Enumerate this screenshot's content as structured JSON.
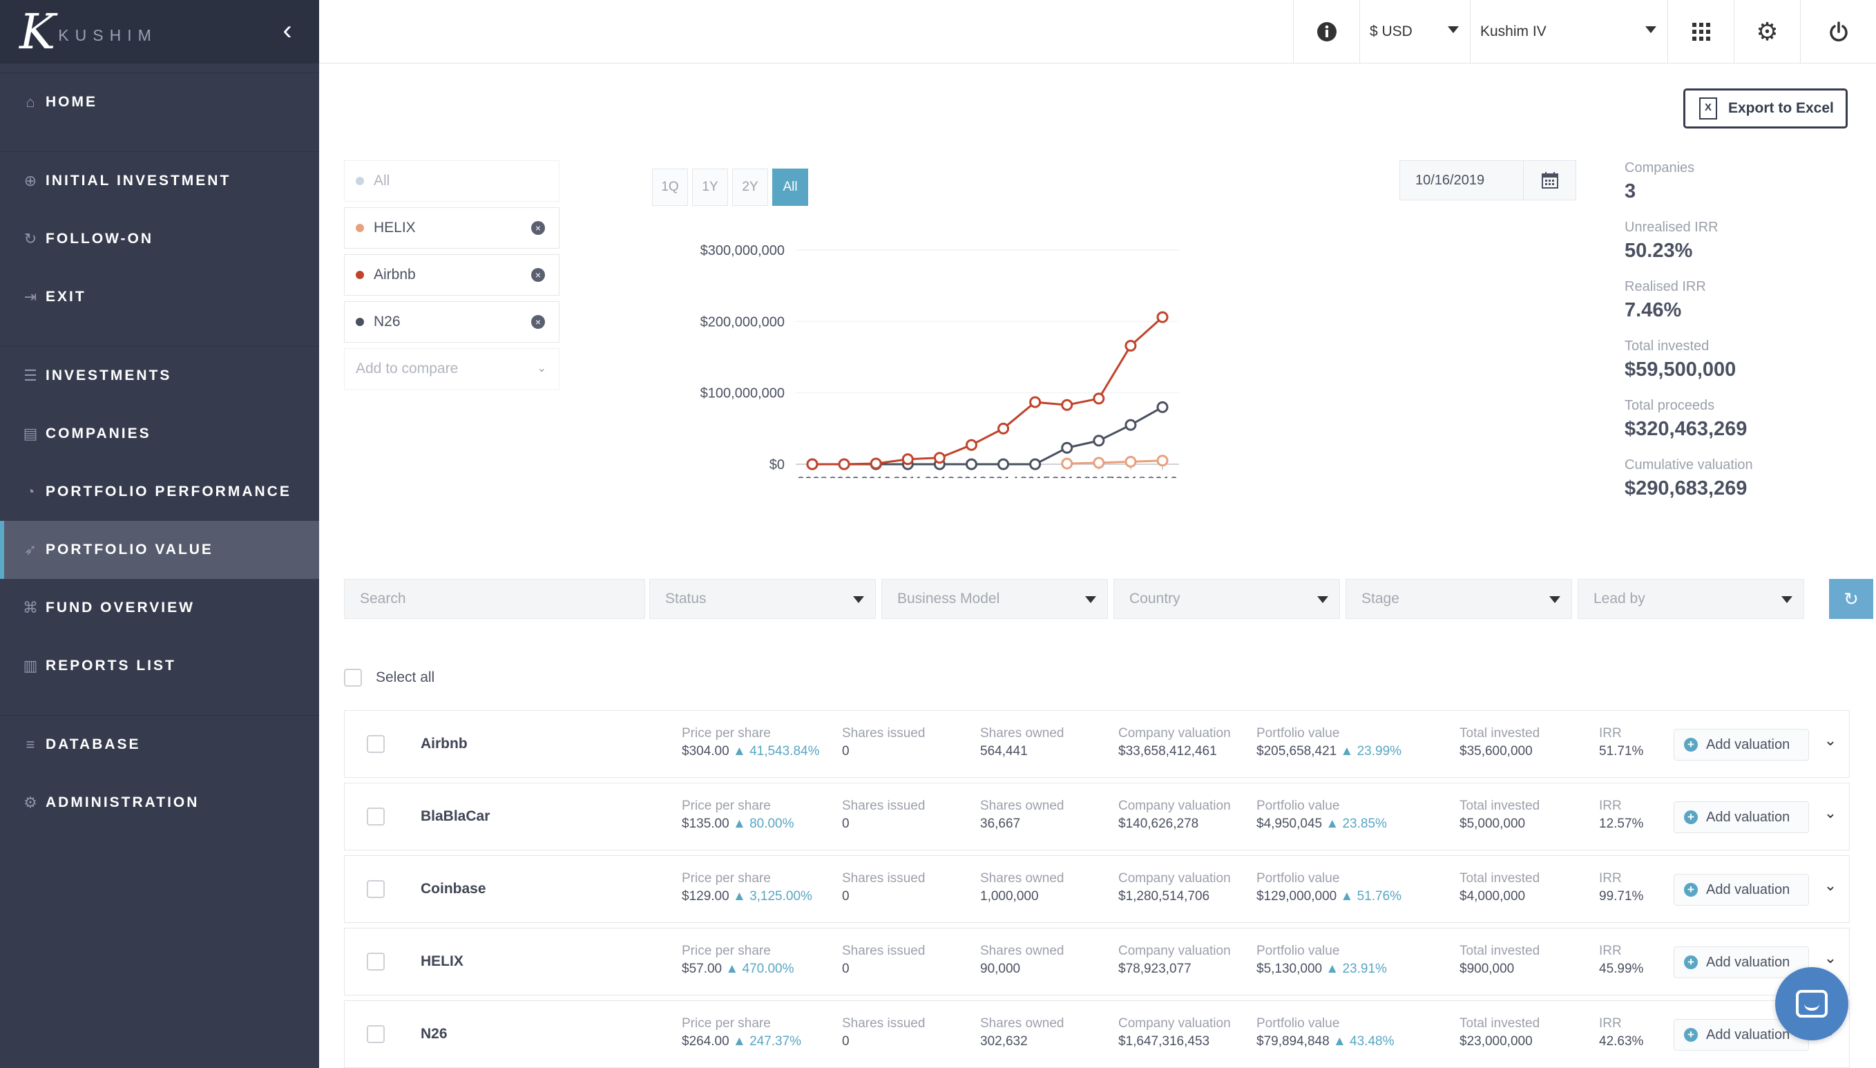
{
  "brand": {
    "logo_letter": "K",
    "name": "KUSHIM"
  },
  "sidebar": {
    "items": [
      {
        "label": "HOME",
        "icon": "home-icon",
        "glyph": "⌂"
      },
      {
        "label": "INITIAL INVESTMENT",
        "icon": "plus-circle-icon",
        "glyph": "⊕"
      },
      {
        "label": "FOLLOW-ON",
        "icon": "refresh-icon",
        "glyph": "↻"
      },
      {
        "label": "EXIT",
        "icon": "sign-out-icon",
        "glyph": "⇥"
      },
      {
        "label": "INVESTMENTS",
        "icon": "list-icon",
        "glyph": "☰"
      },
      {
        "label": "COMPANIES",
        "icon": "building-icon",
        "glyph": "▤"
      },
      {
        "label": "PORTFOLIO PERFORMANCE",
        "icon": "dashboard-icon",
        "glyph": "◔"
      },
      {
        "label": "PORTFOLIO VALUE",
        "icon": "rocket-icon",
        "glyph": "➶"
      },
      {
        "label": "FUND OVERVIEW",
        "icon": "bank-icon",
        "glyph": "⌘"
      },
      {
        "label": "REPORTS LIST",
        "icon": "bar-chart-icon",
        "glyph": "▥"
      },
      {
        "label": "DATABASE",
        "icon": "database-icon",
        "glyph": "≡"
      },
      {
        "label": "ADMINISTRATION",
        "icon": "gear-icon",
        "glyph": "⚙"
      }
    ],
    "active": "PORTFOLIO VALUE"
  },
  "topbar": {
    "currency": "$ USD",
    "fund": "Kushim IV",
    "icons": [
      "info-icon",
      "grid-icon",
      "gear-icon",
      "power-icon"
    ]
  },
  "export": {
    "label": "Export to Excel",
    "icon_letter": "X"
  },
  "compare": {
    "all_label": "All",
    "items": [
      {
        "name": "HELIX",
        "color": "#e8a07d"
      },
      {
        "name": "Airbnb",
        "color": "#c0432a"
      },
      {
        "name": "N26",
        "color": "#4a5060"
      }
    ],
    "add_placeholder": "Add to compare"
  },
  "range": {
    "buttons": [
      "1Q",
      "1Y",
      "2Y",
      "All"
    ],
    "active": "All"
  },
  "date": {
    "value": "10/16/2019"
  },
  "stats": [
    {
      "label": "Companies",
      "value": "3"
    },
    {
      "label": "Unrealised IRR",
      "value": "50.23%"
    },
    {
      "label": "Realised IRR",
      "value": "7.46%"
    },
    {
      "label": "Total invested",
      "value": "$59,500,000"
    },
    {
      "label": "Total proceeds",
      "value": "$320,463,269"
    },
    {
      "label": "Cumulative valuation",
      "value": "$290,683,269"
    }
  ],
  "chart_data": {
    "type": "line",
    "x": [
      "2008",
      "2009",
      "2010",
      "2011",
      "2012",
      "2013",
      "2014",
      "2015",
      "2016",
      "2017",
      "2018",
      "2019"
    ],
    "y_ticks": [
      "$0",
      "$100,000,000",
      "$200,000,000",
      "$300,000,000"
    ],
    "ylim": [
      0,
      300000000
    ],
    "series": [
      {
        "name": "Airbnb",
        "color": "#c0432a",
        "values": [
          0,
          0,
          1000000,
          7000000,
          9000000,
          27000000,
          50000000,
          87000000,
          83000000,
          92000000,
          166000000,
          206000000
        ]
      },
      {
        "name": "N26",
        "color": "#4a5060",
        "values": [
          0,
          0,
          0,
          0,
          0,
          0,
          0,
          0,
          23000000,
          33000000,
          55000000,
          80000000
        ]
      },
      {
        "name": "HELIX",
        "color": "#e8a07d",
        "values": [
          null,
          null,
          null,
          null,
          null,
          null,
          null,
          null,
          1000000,
          2000000,
          3500000,
          5100000
        ]
      }
    ],
    "grid": true,
    "legend": "none"
  },
  "filters": {
    "search_placeholder": "Search",
    "dropdowns": [
      "Status",
      "Business Model",
      "Country",
      "Stage",
      "Lead by"
    ]
  },
  "select_all_label": "Select all",
  "col_labels": {
    "price": "Price per share",
    "shares_issued": "Shares issued",
    "shares_owned": "Shares owned",
    "company_val": "Company valuation",
    "portfolio_val": "Portfolio value",
    "total_invested": "Total invested",
    "irr": "IRR"
  },
  "add_valuation_label": "Add valuation",
  "companies": [
    {
      "name": "Airbnb",
      "price": "$304.00",
      "price_chg": "41,543.84%",
      "shares_issued": "0",
      "shares_owned": "564,441",
      "company_val": "$33,658,412,461",
      "portfolio_val": "$205,658,421",
      "portfolio_chg": "23.99%",
      "total_invested": "$35,600,000",
      "irr": "51.71%"
    },
    {
      "name": "BlaBlaCar",
      "price": "$135.00",
      "price_chg": "80.00%",
      "shares_issued": "0",
      "shares_owned": "36,667",
      "company_val": "$140,626,278",
      "portfolio_val": "$4,950,045",
      "portfolio_chg": "23.85%",
      "total_invested": "$5,000,000",
      "irr": "12.57%"
    },
    {
      "name": "Coinbase",
      "price": "$129.00",
      "price_chg": "3,125.00%",
      "shares_issued": "0",
      "shares_owned": "1,000,000",
      "company_val": "$1,280,514,706",
      "portfolio_val": "$129,000,000",
      "portfolio_chg": "51.76%",
      "total_invested": "$4,000,000",
      "irr": "99.71%"
    },
    {
      "name": "HELIX",
      "price": "$57.00",
      "price_chg": "470.00%",
      "shares_issued": "0",
      "shares_owned": "90,000",
      "company_val": "$78,923,077",
      "portfolio_val": "$5,130,000",
      "portfolio_chg": "23.91%",
      "total_invested": "$900,000",
      "irr": "45.99%"
    },
    {
      "name": "N26",
      "price": "$264.00",
      "price_chg": "247.37%",
      "shares_issued": "0",
      "shares_owned": "302,632",
      "company_val": "$1,647,316,453",
      "portfolio_val": "$79,894,848",
      "portfolio_chg": "43.48%",
      "total_invested": "$23,000,000",
      "irr": "42.63%"
    }
  ]
}
